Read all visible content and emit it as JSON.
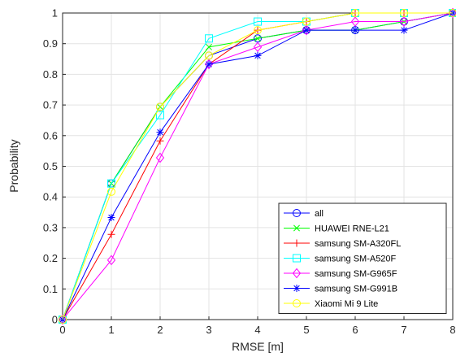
{
  "chart_data": {
    "type": "line",
    "xlabel": "RMSE [m]",
    "ylabel": "Probability",
    "xlim": [
      0,
      8
    ],
    "ylim": [
      0,
      1
    ],
    "xticks": [
      0,
      1,
      2,
      3,
      4,
      5,
      6,
      7,
      8
    ],
    "xtick_labels": [
      "0",
      "1",
      "2",
      "3",
      "4",
      "5",
      "6",
      "7",
      "8"
    ],
    "yticks": [
      0,
      0.1,
      0.2,
      0.3,
      0.4,
      0.5,
      0.6,
      0.7,
      0.8,
      0.9,
      1
    ],
    "ytick_labels": [
      "0",
      "0.1",
      "0.2",
      "0.3",
      "0.4",
      "0.5",
      "0.6",
      "0.7",
      "0.8",
      "0.9",
      "1"
    ],
    "grid": true,
    "legend_position": "bottom-right",
    "x": [
      0,
      1,
      2,
      3,
      4,
      5,
      6,
      7,
      8
    ],
    "series": [
      {
        "name": "all",
        "color": "#0000ff",
        "marker": "circle",
        "values": [
          0,
          0.444,
          0.694,
          0.861,
          0.917,
          0.944,
          0.944,
          0.972,
          1
        ]
      },
      {
        "name": "HUAWEI RNE-L21",
        "color": "#00ff00",
        "marker": "x",
        "values": [
          0,
          0.444,
          0.694,
          0.889,
          0.917,
          0.944,
          0.944,
          0.972,
          1
        ]
      },
      {
        "name": "samsung SM-A320FL",
        "color": "#ff0000",
        "marker": "plus",
        "values": [
          0,
          0.278,
          0.583,
          0.833,
          0.944,
          0.972,
          1,
          1,
          1
        ]
      },
      {
        "name": "samsung SM-A520F",
        "color": "#00ffff",
        "marker": "square",
        "values": [
          0,
          0.444,
          0.667,
          0.917,
          0.972,
          0.972,
          1,
          1,
          1
        ]
      },
      {
        "name": "samsung SM-G965F",
        "color": "#ff00ff",
        "marker": "diamond",
        "values": [
          0,
          0.194,
          0.528,
          0.833,
          0.889,
          0.944,
          0.972,
          0.972,
          1
        ]
      },
      {
        "name": "samsung SM-G991B",
        "color": "#0000ff",
        "marker": "asterisk",
        "values": [
          0,
          0.333,
          0.611,
          0.833,
          0.861,
          0.944,
          0.944,
          0.944,
          1
        ]
      },
      {
        "name": "Xiaomi Mi 9 Lite",
        "color": "#ffff00",
        "marker": "circle",
        "values": [
          0,
          0.417,
          0.694,
          0.861,
          0.944,
          0.972,
          1,
          1,
          1
        ]
      }
    ]
  }
}
